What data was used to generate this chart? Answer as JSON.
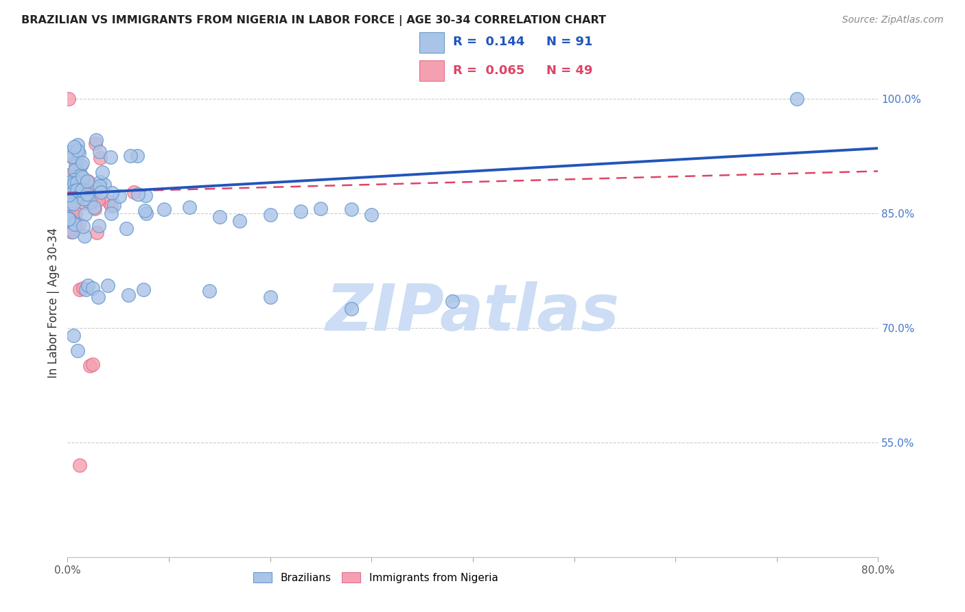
{
  "title": "BRAZILIAN VS IMMIGRANTS FROM NIGERIA IN LABOR FORCE | AGE 30-34 CORRELATION CHART",
  "source": "Source: ZipAtlas.com",
  "ylabel": "In Labor Force | Age 30-34",
  "xlim": [
    0.0,
    0.8
  ],
  "ylim": [
    0.4,
    1.065
  ],
  "xtick_positions": [
    0.0,
    0.1,
    0.2,
    0.3,
    0.4,
    0.5,
    0.6,
    0.7,
    0.8
  ],
  "xticklabels": [
    "0.0%",
    "",
    "",
    "",
    "",
    "",
    "",
    "",
    "80.0%"
  ],
  "ytick_positions": [
    0.55,
    0.7,
    0.85,
    1.0
  ],
  "yticklabels": [
    "55.0%",
    "70.0%",
    "85.0%",
    "100.0%"
  ],
  "grid_color": "#cccccc",
  "background_color": "#ffffff",
  "brazilian_face_color": "#aac4e8",
  "brazilian_edge_color": "#6699cc",
  "nigerian_face_color": "#f4a0b0",
  "nigerian_edge_color": "#e07090",
  "braz_line_color": "#2255bb",
  "nig_line_color": "#dd4466",
  "braz_line_style": "solid",
  "nig_line_style": "dashed",
  "ytick_color": "#4477cc",
  "xtick_color": "#555555",
  "brazilian_R": 0.144,
  "brazilian_N": 91,
  "nigerian_R": 0.065,
  "nigerian_N": 49,
  "watermark_text": "ZIPatlas",
  "watermark_color": "#ccddf5",
  "legend_box_color": "#aac4e8",
  "legend_box2_color": "#f4a0b0"
}
